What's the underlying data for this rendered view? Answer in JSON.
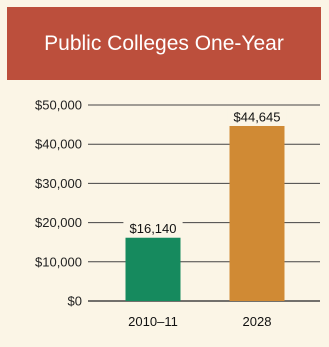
{
  "chart_data": {
    "type": "bar",
    "title": "Public Colleges One-Year",
    "categories": [
      "2010–11",
      "2028"
    ],
    "values": [
      16140,
      44645
    ],
    "value_labels": [
      "$16,140",
      "$44,645"
    ],
    "ylim": [
      0,
      50000
    ],
    "yticks": [
      0,
      10000,
      20000,
      30000,
      40000,
      50000
    ],
    "ytick_labels": [
      "$0",
      "$10,000",
      "$20,000",
      "$30,000",
      "$40,000",
      "$50,000"
    ],
    "grid": true,
    "legend": "none"
  },
  "colors": {
    "title_background": "#bc4f3c",
    "panel_background": "#fbf5e6",
    "bars": [
      "#168a5e",
      "#d08a34"
    ]
  }
}
